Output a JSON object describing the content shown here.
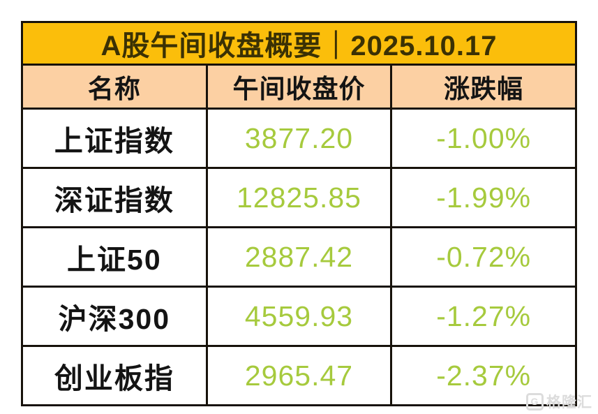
{
  "theme": {
    "canvas-bg": "#ffffff",
    "title-bg": "#fbbe0b",
    "title-text": "#3b3104",
    "header-bg": "#fcd0a3",
    "header-text": "#141414",
    "row-bg": "#ffffff",
    "label-text": "#141414",
    "value-text": "#a6ca3d",
    "border": "#17120b",
    "watermark": "#dcdcdc"
  },
  "table": {
    "title": "A股午间收盘概要｜2025.10.17",
    "columns": [
      "名称",
      "午间收盘价",
      "涨跌幅"
    ],
    "rows": [
      {
        "name": "上证指数",
        "price": "3877.20",
        "change": "-1.00%"
      },
      {
        "name": "深证指数",
        "price": "12825.85",
        "change": "-1.99%"
      },
      {
        "name": "上证50",
        "price": "2887.42",
        "change": "-0.72%"
      },
      {
        "name": "沪深300",
        "price": "4559.93",
        "change": "-1.27%"
      },
      {
        "name": "创业板指",
        "price": "2965.47",
        "change": "-2.37%"
      }
    ]
  },
  "watermark": {
    "logo": "G",
    "text": "格隆汇"
  },
  "chart_data": {
    "type": "table",
    "title": "A股午间收盘概要｜2025.10.17",
    "columns": [
      "名称",
      "午间收盘价",
      "涨跌幅"
    ],
    "rows": [
      [
        "上证指数",
        3877.2,
        "-1.00%"
      ],
      [
        "深证指数",
        12825.85,
        "-1.99%"
      ],
      [
        "上证50",
        2887.42,
        "-0.72%"
      ],
      [
        "沪深300",
        4559.93,
        "-1.27%"
      ],
      [
        "创业板指",
        2965.47,
        "-2.37%"
      ]
    ]
  }
}
